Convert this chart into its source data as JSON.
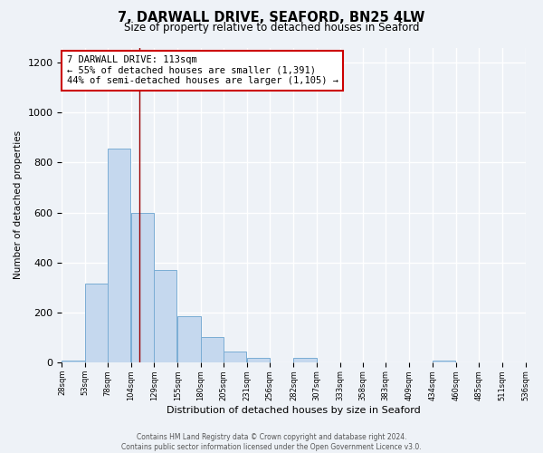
{
  "title": "7, DARWALL DRIVE, SEAFORD, BN25 4LW",
  "subtitle": "Size of property relative to detached houses in Seaford",
  "xlabel": "Distribution of detached houses by size in Seaford",
  "ylabel": "Number of detached properties",
  "bar_color": "#c5d8ee",
  "bar_edge_color": "#7aadd4",
  "background_color": "#eef2f7",
  "grid_color": "#ffffff",
  "bin_edges": [
    28,
    53,
    78,
    104,
    129,
    155,
    180,
    205,
    231,
    256,
    282,
    307,
    333,
    358,
    383,
    409,
    434,
    460,
    485,
    511,
    536
  ],
  "bin_labels": [
    "28sqm",
    "53sqm",
    "78sqm",
    "104sqm",
    "129sqm",
    "155sqm",
    "180sqm",
    "205sqm",
    "231sqm",
    "256sqm",
    "282sqm",
    "307sqm",
    "333sqm",
    "358sqm",
    "383sqm",
    "409sqm",
    "434sqm",
    "460sqm",
    "485sqm",
    "511sqm",
    "536sqm"
  ],
  "bar_heights": [
    10,
    315,
    855,
    600,
    370,
    185,
    103,
    45,
    20,
    0,
    20,
    0,
    0,
    0,
    0,
    0,
    10,
    0,
    0,
    0
  ],
  "ylim": [
    0,
    1260
  ],
  "yticks": [
    0,
    200,
    400,
    600,
    800,
    1000,
    1200
  ],
  "property_line_x": 113,
  "property_line_color": "#990000",
  "annotation_title": "7 DARWALL DRIVE: 113sqm",
  "annotation_line1": "← 55% of detached houses are smaller (1,391)",
  "annotation_line2": "44% of semi-detached houses are larger (1,105) →",
  "annotation_box_color": "#ffffff",
  "annotation_box_edge_color": "#cc0000",
  "footer_line1": "Contains HM Land Registry data © Crown copyright and database right 2024.",
  "footer_line2": "Contains public sector information licensed under the Open Government Licence v3.0."
}
